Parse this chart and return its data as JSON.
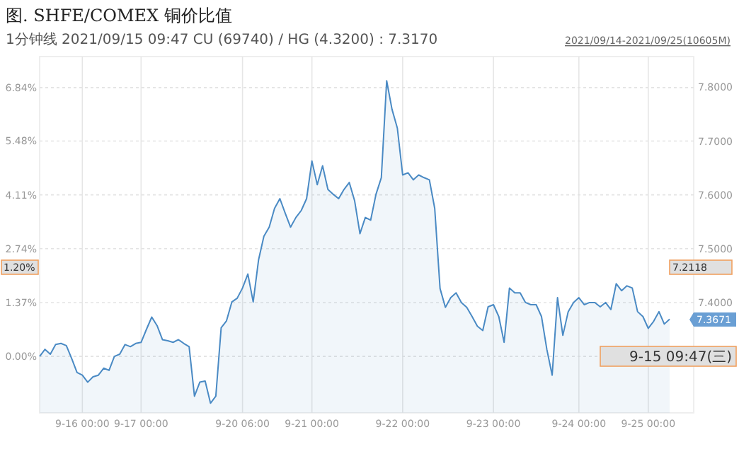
{
  "chart_data": {
    "type": "area",
    "title": "图. SHFE/COMEX 铜价比值",
    "subtitle": "1分钟线 2021/09/15 09:47 CU (69740) / HG (4.3200) : 7.3170",
    "annotations": [
      "2021/09/14-2021/09/25(10605M)",
      "1.20%",
      "7.2118",
      "9-15 09:47(三)",
      "7.3671"
    ],
    "categories": [
      null,
      null,
      null,
      null,
      null,
      null,
      null,
      null,
      "9-16 00:00",
      null,
      null,
      null,
      null,
      null,
      null,
      null,
      null,
      null,
      null,
      "9-17 00:00",
      null,
      null,
      null,
      null,
      null,
      null,
      null,
      null,
      null,
      null,
      null,
      null,
      null,
      null,
      null,
      null,
      null,
      null,
      "9-20 06:00",
      null,
      null,
      null,
      null,
      null,
      null,
      null,
      null,
      null,
      null,
      null,
      null,
      "9-21 00:00",
      null,
      null,
      null,
      null,
      null,
      null,
      null,
      null,
      null,
      null,
      null,
      null,
      null,
      null,
      null,
      null,
      "9-22 00:00",
      null,
      null,
      null,
      null,
      null,
      null,
      null,
      null,
      null,
      null,
      null,
      null,
      null,
      null,
      null,
      null,
      "9-23 00:00",
      null,
      null,
      null,
      null,
      null,
      null,
      null,
      null,
      null,
      null,
      null,
      null,
      null,
      null,
      null,
      "9-24 00:00",
      null,
      null,
      null,
      null,
      null,
      null,
      null,
      null,
      null,
      null,
      null,
      null,
      "9-25 00:00",
      null,
      null,
      null,
      null
    ],
    "series": [
      {
        "color": "#4a8ac4",
        "axis": "y2",
        "values": [
          7.3,
          7.313,
          7.304,
          7.322,
          7.324,
          7.32,
          7.296,
          7.27,
          7.265,
          7.252,
          7.262,
          7.265,
          7.278,
          7.274,
          7.3,
          7.304,
          7.322,
          7.318,
          7.324,
          7.326,
          7.35,
          7.373,
          7.357,
          7.331,
          7.329,
          7.326,
          7.331,
          7.324,
          7.318,
          7.226,
          7.252,
          7.254,
          7.213,
          7.226,
          7.353,
          7.366,
          7.401,
          7.408,
          7.427,
          7.453,
          7.401,
          7.479,
          7.523,
          7.54,
          7.575,
          7.593,
          7.566,
          7.54,
          7.558,
          7.571,
          7.593,
          7.663,
          7.619,
          7.654,
          7.61,
          7.601,
          7.593,
          7.61,
          7.623,
          7.589,
          7.528,
          7.558,
          7.553,
          7.601,
          7.632,
          7.812,
          7.759,
          7.724,
          7.637,
          7.641,
          7.628,
          7.637,
          7.632,
          7.628,
          7.575,
          7.426,
          7.391,
          7.409,
          7.418,
          7.4,
          7.391,
          7.374,
          7.356,
          7.348,
          7.392,
          7.396,
          7.374,
          7.326,
          7.427,
          7.418,
          7.418,
          7.4,
          7.396,
          7.396,
          7.374,
          7.313,
          7.265,
          7.409,
          7.339,
          7.383,
          7.4,
          7.409,
          7.396,
          7.4,
          7.4,
          7.392,
          7.4,
          7.387,
          7.435,
          7.422,
          7.431,
          7.427,
          7.383,
          7.374,
          7.352,
          7.365,
          7.383,
          7.36,
          7.369
        ]
      }
    ],
    "ylim": [
      -1.438,
      7.63
    ],
    "yticks": [
      {
        "value": 0,
        "label": "0.00%"
      },
      {
        "value": 1.37,
        "label": "1.37%"
      },
      {
        "value": 2.74,
        "label": "2.74%"
      },
      {
        "value": 4.11,
        "label": "4.11%"
      },
      {
        "value": 5.48,
        "label": "5.48%"
      },
      {
        "value": 6.84,
        "label": "6.84%"
      }
    ],
    "y2lim": [
      7.195,
      7.857
    ],
    "y2ticks": [
      {
        "value": 7.3,
        "label": null
      },
      {
        "value": 7.4,
        "label": "7.4000"
      },
      {
        "value": 7.5,
        "label": "7.5000"
      },
      {
        "value": 7.6,
        "label": "7.6000"
      },
      {
        "value": 7.7,
        "label": "7.7000"
      },
      {
        "value": 7.8,
        "label": "7.8000"
      }
    ],
    "grid": true
  }
}
